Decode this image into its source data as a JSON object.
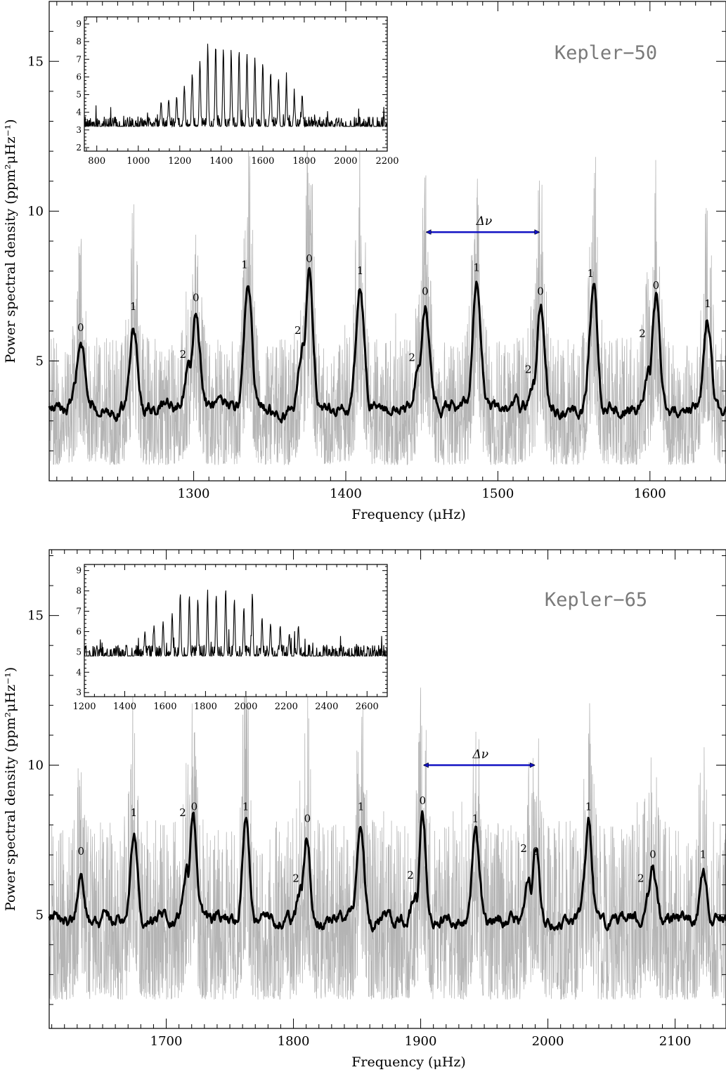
{
  "chart_data": [
    {
      "type": "line",
      "star": "Kepler−50",
      "xlabel": "Frequency (μHz)",
      "ylabel": "Power spectral density (ppm²μHz⁻¹)",
      "xlim": [
        1205,
        1650
      ],
      "ylim": [
        1,
        17
      ],
      "xticks": [
        1300,
        1400,
        1500,
        1600
      ],
      "yticks": [
        5,
        10,
        15
      ],
      "series": [
        {
          "description": "smoothed spectrum (bold black)",
          "x": [
            1225.7,
            1260.3,
            1296.8,
            1301.5,
            1335.8,
            1372.0,
            1376.0,
            1409.5,
            1448.0,
            1452.2,
            1486.0,
            1524.0,
            1528.0,
            1563.0,
            1599.0,
            1604.0,
            1638.0
          ],
          "y": [
            5.5,
            6.1,
            4.8,
            6.5,
            7.6,
            5.6,
            7.9,
            7.5,
            4.6,
            6.8,
            7.6,
            4.4,
            6.8,
            7.4,
            4.8,
            7.0,
            6.3
          ]
        }
      ],
      "delta_nu": {
        "label": "Δν",
        "from": 1452.2,
        "to": 1528.0,
        "y": 9.3
      },
      "mode_labels": [
        {
          "text": "0",
          "x": 1225.7,
          "y": 6.0
        },
        {
          "text": "1",
          "x": 1260.3,
          "y": 6.7
        },
        {
          "text": "2",
          "x": 1293.0,
          "y": 5.1
        },
        {
          "text": "0",
          "x": 1301.5,
          "y": 7.0
        },
        {
          "text": "1",
          "x": 1333.5,
          "y": 8.1
        },
        {
          "text": "2",
          "x": 1368.5,
          "y": 5.9
        },
        {
          "text": "0",
          "x": 1376.0,
          "y": 8.3
        },
        {
          "text": "1",
          "x": 1409.5,
          "y": 7.9
        },
        {
          "text": "2",
          "x": 1443.5,
          "y": 5.0
        },
        {
          "text": "0",
          "x": 1452.2,
          "y": 7.2
        },
        {
          "text": "1",
          "x": 1486.0,
          "y": 8.0
        },
        {
          "text": "2",
          "x": 1520.0,
          "y": 4.6
        },
        {
          "text": "0",
          "x": 1528.0,
          "y": 7.2
        },
        {
          "text": "1",
          "x": 1561.0,
          "y": 7.8
        },
        {
          "text": "2",
          "x": 1595.0,
          "y": 5.8
        },
        {
          "text": "0",
          "x": 1604.0,
          "y": 7.4
        },
        {
          "text": "1",
          "x": 1638.0,
          "y": 6.8
        }
      ],
      "inset": {
        "xlim": [
          740,
          2200
        ],
        "ylim": [
          1.8,
          9.4
        ],
        "xticks": [
          800,
          1000,
          1200,
          1400,
          1600,
          1800,
          2000,
          2200
        ],
        "yticks": [
          2,
          3,
          4,
          5,
          6,
          7,
          8,
          9
        ],
        "background": 3.2,
        "peaks": [
          {
            "x": 1110,
            "y": 4.6
          },
          {
            "x": 1147,
            "y": 4.7
          },
          {
            "x": 1185,
            "y": 4.9
          },
          {
            "x": 1222,
            "y": 5.5
          },
          {
            "x": 1260,
            "y": 6.2
          },
          {
            "x": 1297,
            "y": 6.9
          },
          {
            "x": 1335,
            "y": 7.6
          },
          {
            "x": 1373,
            "y": 7.8
          },
          {
            "x": 1410,
            "y": 7.6
          },
          {
            "x": 1448,
            "y": 7.2
          },
          {
            "x": 1486,
            "y": 7.5
          },
          {
            "x": 1524,
            "y": 7.3
          },
          {
            "x": 1562,
            "y": 7.1
          },
          {
            "x": 1600,
            "y": 6.8
          },
          {
            "x": 1638,
            "y": 6.2
          },
          {
            "x": 1676,
            "y": 5.9
          },
          {
            "x": 1714,
            "y": 5.6
          },
          {
            "x": 1752,
            "y": 4.9
          },
          {
            "x": 1790,
            "y": 5.0
          }
        ]
      }
    },
    {
      "type": "line",
      "star": "Kepler−65",
      "xlabel": "Frequency (μHz)",
      "ylabel": "Power spectral density (ppm²μHz⁻¹)",
      "xlim": [
        1608,
        2140
      ],
      "ylim": [
        1.2,
        17.2
      ],
      "xticks": [
        1700,
        1800,
        1900,
        2000,
        2100
      ],
      "yticks": [
        5,
        10,
        15
      ],
      "series": [
        {
          "description": "smoothed spectrum (bold black)",
          "x": [
            1633.0,
            1674.5,
            1716.0,
            1721.0,
            1762.5,
            1806.0,
            1810.5,
            1853.0,
            1896.0,
            1901.5,
            1943.0,
            1985.0,
            1990.5,
            2032.0,
            2078.0,
            2082.5,
            2122.0
          ],
          "y": [
            6.6,
            7.8,
            6.5,
            8.1,
            7.9,
            5.8,
            7.6,
            7.9,
            5.8,
            8.3,
            7.7,
            6.1,
            7.2,
            7.9,
            5.8,
            6.5,
            6.4
          ]
        }
      ],
      "delta_nu": {
        "label": "Δν",
        "from": 1901.5,
        "to": 1990.5,
        "y": 10.0
      },
      "mode_labels": [
        {
          "text": "0",
          "x": 1633.0,
          "y": 7.0
        },
        {
          "text": "1",
          "x": 1674.5,
          "y": 8.3
        },
        {
          "text": "2",
          "x": 1713.0,
          "y": 8.3
        },
        {
          "text": "0",
          "x": 1722.0,
          "y": 8.5
        },
        {
          "text": "1",
          "x": 1762.5,
          "y": 8.5
        },
        {
          "text": "2",
          "x": 1802.0,
          "y": 6.1
        },
        {
          "text": "0",
          "x": 1811.0,
          "y": 8.1
        },
        {
          "text": "1",
          "x": 1853.0,
          "y": 8.5
        },
        {
          "text": "2",
          "x": 1892.0,
          "y": 6.2
        },
        {
          "text": "0",
          "x": 1901.5,
          "y": 8.7
        },
        {
          "text": "1",
          "x": 1943.0,
          "y": 8.1
        },
        {
          "text": "2",
          "x": 1981.0,
          "y": 7.1
        },
        {
          "text": "0",
          "x": 1990.5,
          "y": 7.0
        },
        {
          "text": "1",
          "x": 2032.0,
          "y": 8.5
        },
        {
          "text": "2",
          "x": 2073.0,
          "y": 6.1
        },
        {
          "text": "0",
          "x": 2082.5,
          "y": 6.9
        },
        {
          "text": "1",
          "x": 2122.0,
          "y": 6.9
        }
      ],
      "inset": {
        "xlim": [
          1200,
          2700
        ],
        "ylim": [
          2.8,
          9.3
        ],
        "xticks": [
          1200,
          1400,
          1600,
          1800,
          2000,
          2200,
          2400,
          2600
        ],
        "yticks": [
          3,
          4,
          5,
          6,
          7,
          8,
          9
        ],
        "background": 4.8,
        "peaks": [
          {
            "x": 1500,
            "y": 6.0
          },
          {
            "x": 1545,
            "y": 6.3
          },
          {
            "x": 1590,
            "y": 6.5
          },
          {
            "x": 1635,
            "y": 6.9
          },
          {
            "x": 1675,
            "y": 7.9
          },
          {
            "x": 1720,
            "y": 7.8
          },
          {
            "x": 1762,
            "y": 7.6
          },
          {
            "x": 1810,
            "y": 7.7
          },
          {
            "x": 1853,
            "y": 7.8
          },
          {
            "x": 1900,
            "y": 8.1
          },
          {
            "x": 1943,
            "y": 7.6
          },
          {
            "x": 1990,
            "y": 7.2
          },
          {
            "x": 2032,
            "y": 7.9
          },
          {
            "x": 2080,
            "y": 6.7
          },
          {
            "x": 2122,
            "y": 6.4
          },
          {
            "x": 2170,
            "y": 6.3
          },
          {
            "x": 2215,
            "y": 5.9
          },
          {
            "x": 2260,
            "y": 6.3
          }
        ]
      }
    }
  ]
}
